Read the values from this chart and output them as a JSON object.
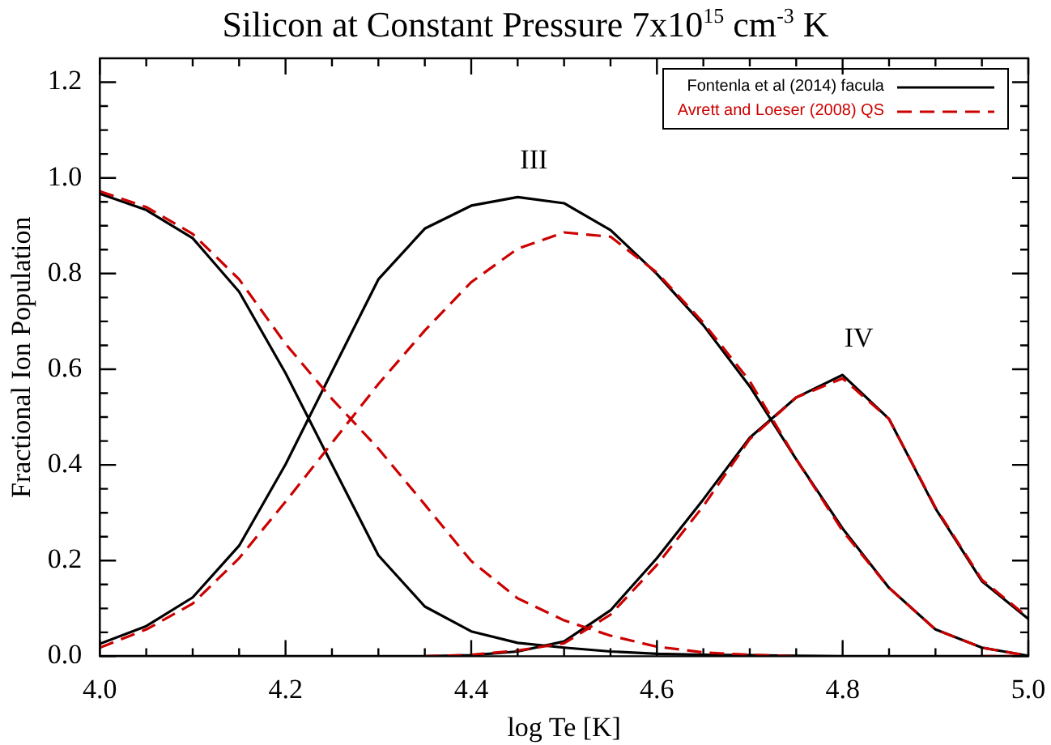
{
  "chart_data": {
    "type": "line",
    "title": "Silicon at Constant Pressure 7x10$^{15}$ cm$^{-3}$ K",
    "xlabel": "log Te [K]",
    "ylabel": "Fractional Ion Population",
    "x": [
      4.0,
      4.05,
      4.1,
      4.15,
      4.2,
      4.25,
      4.3,
      4.35,
      4.4,
      4.45,
      4.5,
      4.55,
      4.6,
      4.65,
      4.7,
      4.75,
      4.8,
      4.85,
      4.9,
      4.95,
      5.0
    ],
    "xlim": [
      4.0,
      5.0
    ],
    "ylim": [
      0,
      1.25
    ],
    "xticks": [
      {
        "value": 4.0,
        "label": "4.0"
      },
      {
        "value": 4.05,
        "label": null
      },
      {
        "value": 4.1,
        "label": null
      },
      {
        "value": 4.15,
        "label": null
      },
      {
        "value": 4.2,
        "label": "4.2"
      },
      {
        "value": 4.25,
        "label": null
      },
      {
        "value": 4.3,
        "label": null
      },
      {
        "value": 4.35,
        "label": null
      },
      {
        "value": 4.4,
        "label": "4.4"
      },
      {
        "value": 4.45,
        "label": null
      },
      {
        "value": 4.5,
        "label": null
      },
      {
        "value": 4.55,
        "label": null
      },
      {
        "value": 4.6,
        "label": "4.6"
      },
      {
        "value": 4.65,
        "label": null
      },
      {
        "value": 4.7,
        "label": null
      },
      {
        "value": 4.75,
        "label": null
      },
      {
        "value": 4.8,
        "label": "4.8"
      },
      {
        "value": 4.85,
        "label": null
      },
      {
        "value": 4.9,
        "label": null
      },
      {
        "value": 4.95,
        "label": null
      },
      {
        "value": 5.0,
        "label": "5.0"
      }
    ],
    "yticks": [
      {
        "value": 0,
        "label": "0.0"
      },
      {
        "value": 0.05,
        "label": null
      },
      {
        "value": 0.1,
        "label": null
      },
      {
        "value": 0.15,
        "label": null
      },
      {
        "value": 0.2,
        "label": "0.2"
      },
      {
        "value": 0.25,
        "label": null
      },
      {
        "value": 0.3,
        "label": null
      },
      {
        "value": 0.35,
        "label": null
      },
      {
        "value": 0.4,
        "label": "0.4"
      },
      {
        "value": 0.45,
        "label": null
      },
      {
        "value": 0.5,
        "label": null
      },
      {
        "value": 0.55,
        "label": null
      },
      {
        "value": 0.6,
        "label": "0.6"
      },
      {
        "value": 0.65,
        "label": null
      },
      {
        "value": 0.7,
        "label": null
      },
      {
        "value": 0.75,
        "label": null
      },
      {
        "value": 0.8,
        "label": "0.8"
      },
      {
        "value": 0.85,
        "label": null
      },
      {
        "value": 0.9,
        "label": null
      },
      {
        "value": 0.95,
        "label": null
      },
      {
        "value": 1.0,
        "label": "1.0"
      },
      {
        "value": 1.05,
        "label": null
      },
      {
        "value": 1.1,
        "label": null
      },
      {
        "value": 1.15,
        "label": null
      },
      {
        "value": 1.2,
        "label": "1.2"
      }
    ],
    "grid": false,
    "legend": "top right",
    "marker": "none",
    "series": [
      {
        "name": "Fontenla et al (2014) facula",
        "color": "#000000",
        "line_style": "solid",
        "values": [
          0.967,
          0.933,
          0.874,
          0.762,
          0.592,
          0.401,
          0.211,
          0.104,
          0.052,
          0.028,
          0.018,
          0.01,
          0.005,
          0.003,
          0.002,
          0.001,
          0,
          0,
          0,
          0,
          0
        ]
      },
      {
        "color": "#000000",
        "line_style": "solid",
        "values": [
          0.026,
          0.063,
          0.123,
          0.231,
          0.401,
          0.595,
          0.788,
          0.894,
          0.942,
          0.96,
          0.947,
          0.891,
          0.799,
          0.692,
          0.564,
          0.412,
          0.267,
          0.143,
          0.056,
          0.018,
          0.001
        ]
      },
      {
        "color": "#000000",
        "line_style": "solid",
        "values": [
          0,
          0,
          0,
          0,
          0,
          0,
          0,
          0,
          0.002,
          0.01,
          0.031,
          0.096,
          0.205,
          0.328,
          0.457,
          0.541,
          0.588,
          0.496,
          0.309,
          0.157,
          0.078
        ]
      },
      {
        "name": "Avrett and Loeser (2008) QS",
        "color": "#cc0000",
        "line_style": "dashed",
        "values": [
          0.972,
          0.939,
          0.883,
          0.788,
          0.653,
          0.538,
          0.434,
          0.317,
          0.199,
          0.121,
          0.075,
          0.043,
          0.02,
          0.008,
          0.003,
          0,
          null,
          null,
          null,
          0,
          0
        ]
      },
      {
        "color": "#cc0000",
        "line_style": "dashed",
        "values": [
          0.018,
          0.056,
          0.11,
          0.205,
          0.323,
          0.446,
          0.569,
          0.681,
          0.782,
          0.852,
          0.886,
          0.877,
          0.802,
          0.697,
          0.575,
          0.412,
          0.262,
          0.143,
          0.056,
          0.018,
          0.001
        ]
      },
      {
        "color": "#cc0000",
        "line_style": "dashed",
        "values": [
          null,
          null,
          null,
          null,
          null,
          null,
          null,
          0,
          0.003,
          0.012,
          0.027,
          0.087,
          0.191,
          0.314,
          0.454,
          0.541,
          0.581,
          0.496,
          0.311,
          0.16,
          0.081
        ]
      }
    ],
    "annotations": [
      {
        "text": "III",
        "x": 4.45,
        "y": 0.96
      },
      {
        "text": "IV",
        "x": 4.8,
        "y": 0.588
      }
    ]
  }
}
